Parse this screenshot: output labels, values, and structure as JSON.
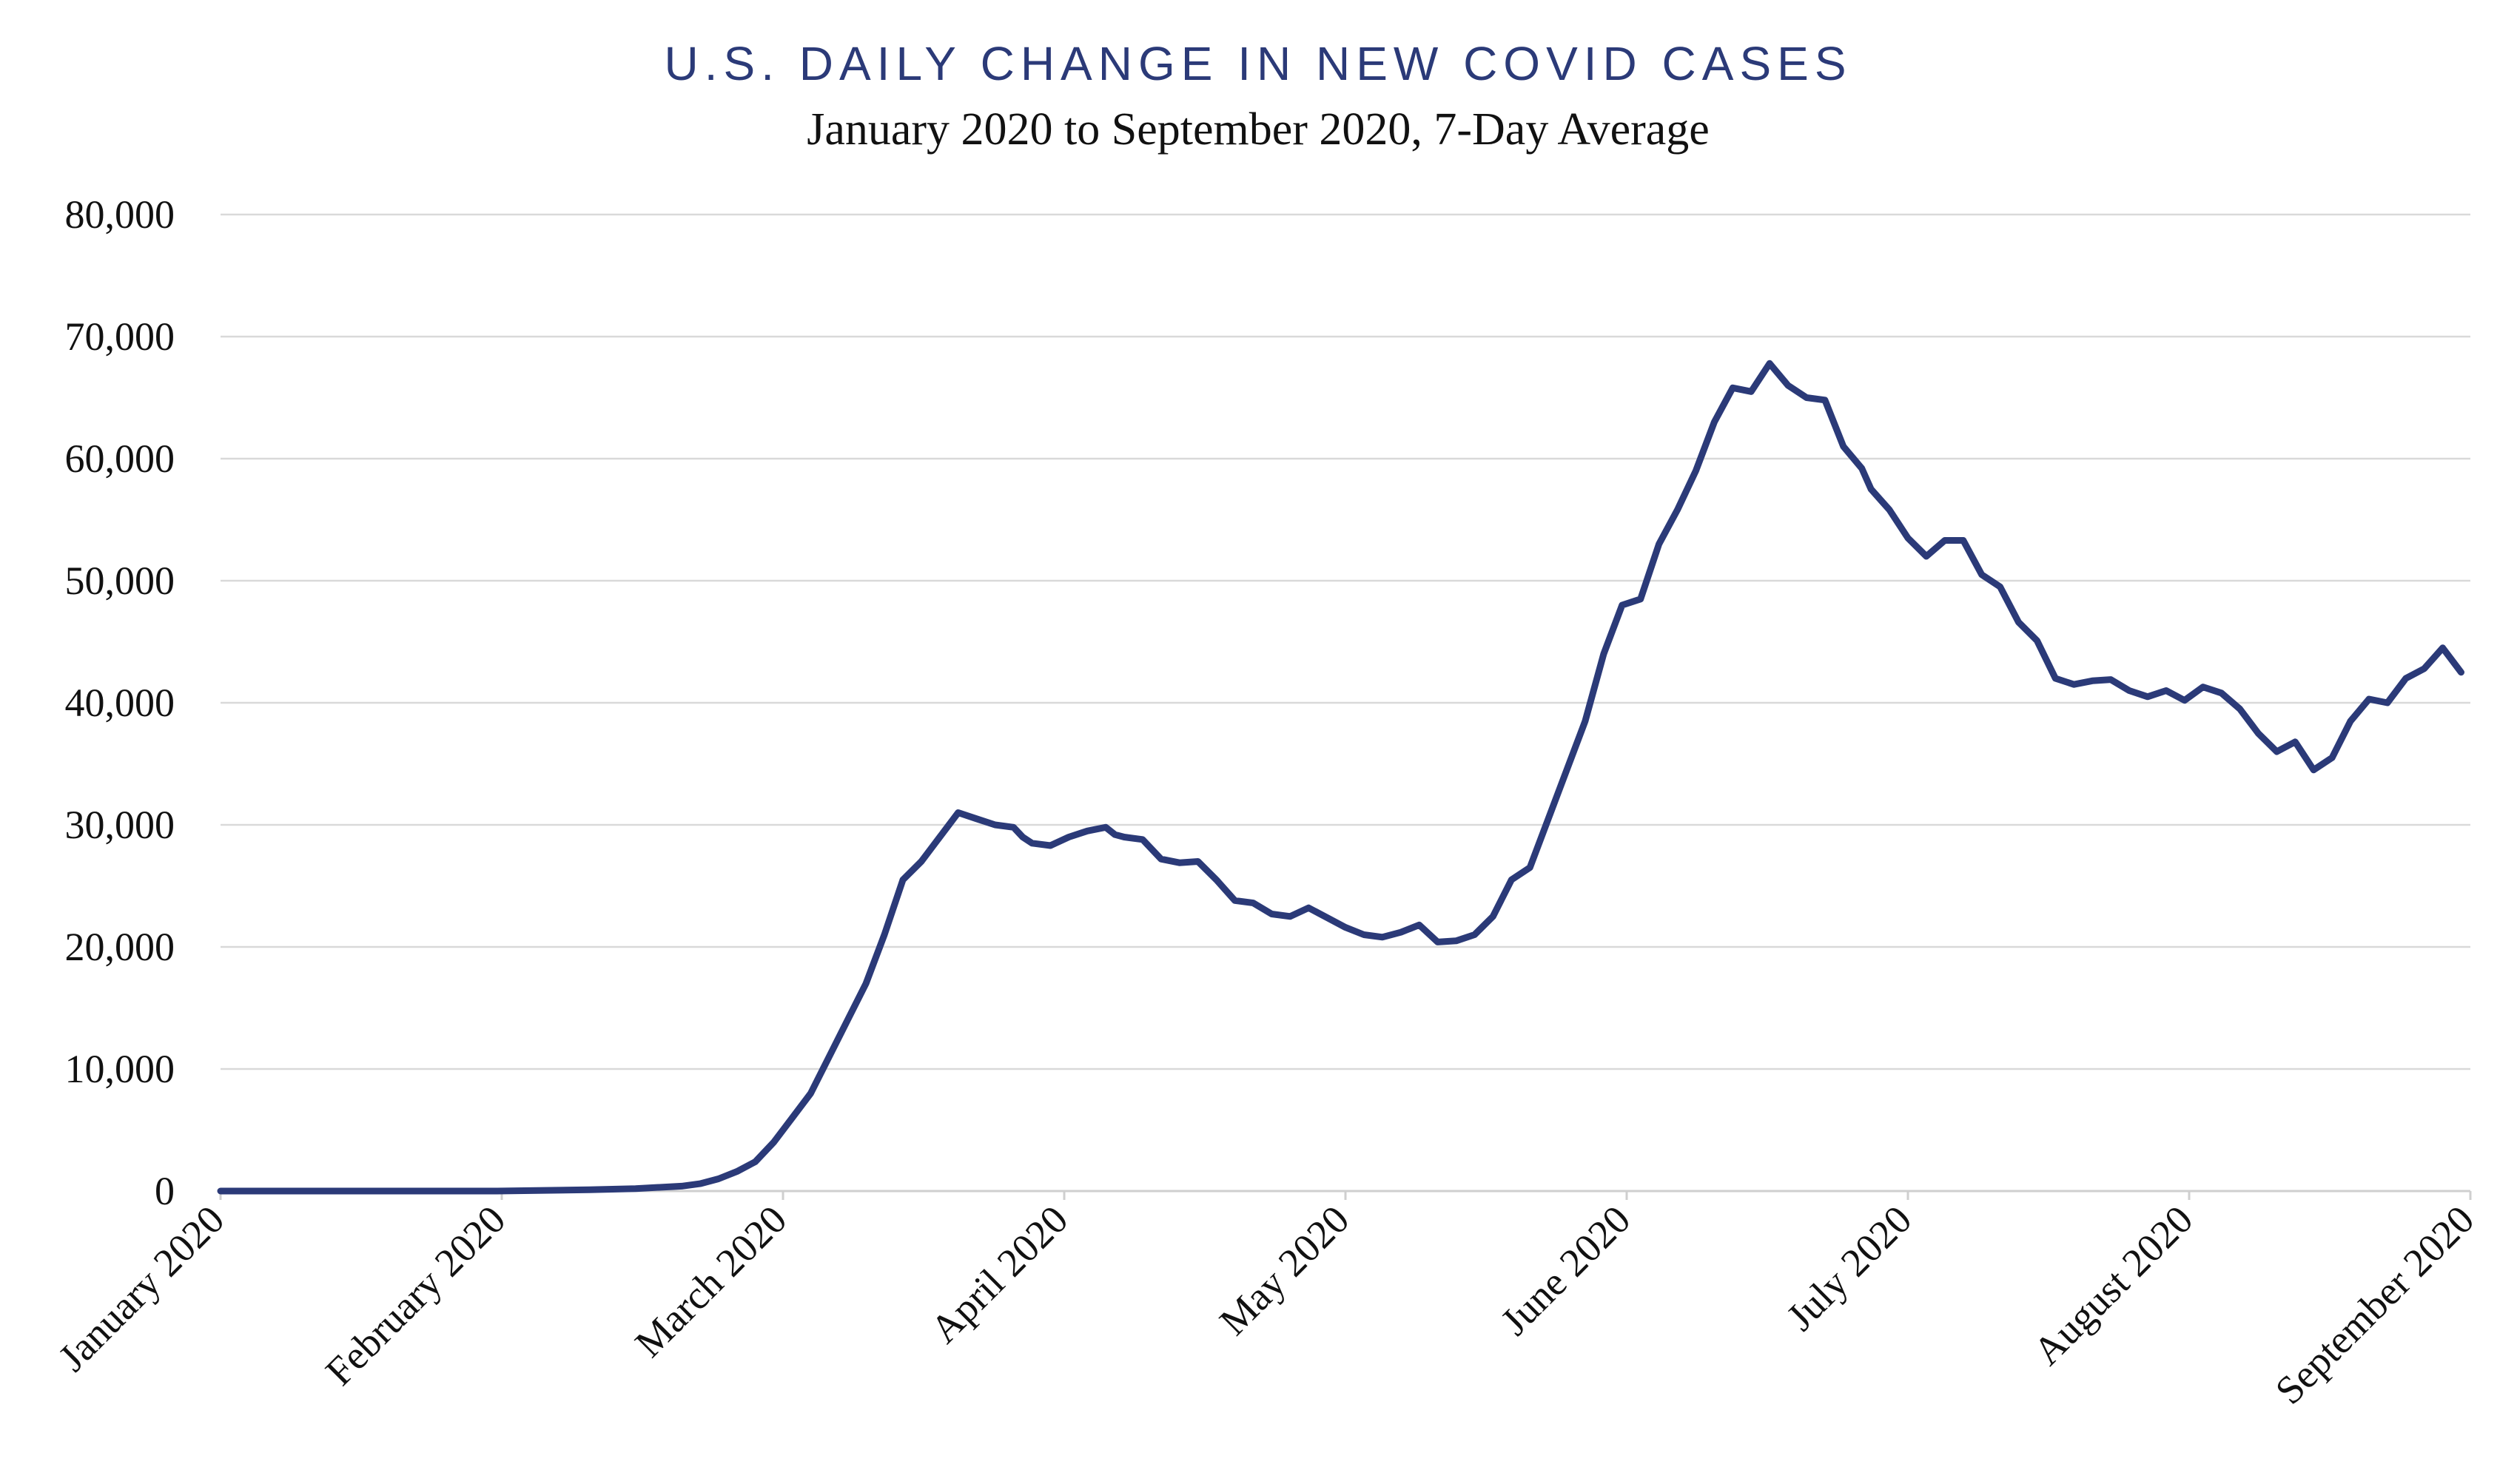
{
  "chart_data": {
    "type": "line",
    "title": "U.S. DAILY CHANGE IN NEW COVID CASES",
    "subtitle": "January 2020 to September 2020, 7-Day Average",
    "xlabel": "",
    "ylabel": "",
    "ylim": [
      0,
      80000
    ],
    "yticks": [
      0,
      10000,
      20000,
      30000,
      40000,
      50000,
      60000,
      70000,
      80000
    ],
    "ytick_labels": [
      "0",
      "10,000",
      "20,000",
      "30,000",
      "40,000",
      "50,000",
      "60,000",
      "70,000",
      "80,000"
    ],
    "xlim": [
      "2020-01-01",
      "2020-09-01"
    ],
    "xtick_labels": [
      "January 2020",
      "February 2020",
      "March 2020",
      "April 2020",
      "May 2020",
      "June 2020",
      "July 2020",
      "August 2020",
      "September 2020"
    ],
    "grid": true,
    "color": "#2b3a78",
    "series": [
      {
        "x": [
          "2020-01-01",
          "2020-01-15",
          "2020-01-31",
          "2020-02-10",
          "2020-02-15",
          "2020-02-20",
          "2020-02-22",
          "2020-02-24",
          "2020-02-26",
          "2020-02-28",
          "2020-03-01",
          "2020-03-03",
          "2020-03-05",
          "2020-03-07",
          "2020-03-09",
          "2020-03-11",
          "2020-03-13",
          "2020-03-15",
          "2020-03-17",
          "2020-03-19",
          "2020-03-21",
          "2020-03-23",
          "2020-03-25",
          "2020-03-27",
          "2020-03-28",
          "2020-03-29",
          "2020-03-31",
          "2020-04-02",
          "2020-04-04",
          "2020-04-06",
          "2020-04-07",
          "2020-04-08",
          "2020-04-10",
          "2020-04-12",
          "2020-04-14",
          "2020-04-16",
          "2020-04-18",
          "2020-04-20",
          "2020-04-22",
          "2020-04-24",
          "2020-04-26",
          "2020-04-28",
          "2020-04-30",
          "2020-05-02",
          "2020-05-04",
          "2020-05-06",
          "2020-05-08",
          "2020-05-10",
          "2020-05-12",
          "2020-05-14",
          "2020-05-16",
          "2020-05-18",
          "2020-05-20",
          "2020-05-22",
          "2020-05-24",
          "2020-05-26",
          "2020-05-28",
          "2020-05-30",
          "2020-06-01",
          "2020-06-03",
          "2020-06-05",
          "2020-06-07",
          "2020-06-09",
          "2020-06-11",
          "2020-06-13",
          "2020-06-15",
          "2020-06-17",
          "2020-06-19",
          "2020-06-21",
          "2020-06-23",
          "2020-06-25",
          "2020-06-27",
          "2020-06-28",
          "2020-06-30",
          "2020-07-02",
          "2020-07-04",
          "2020-07-06",
          "2020-07-08",
          "2020-07-10",
          "2020-07-12",
          "2020-07-14",
          "2020-07-16",
          "2020-07-18",
          "2020-07-20",
          "2020-07-22",
          "2020-07-24",
          "2020-07-26",
          "2020-07-28",
          "2020-07-30",
          "2020-08-01",
          "2020-08-03",
          "2020-08-05",
          "2020-08-07",
          "2020-08-09",
          "2020-08-11",
          "2020-08-13",
          "2020-08-15",
          "2020-08-17",
          "2020-08-19",
          "2020-08-21",
          "2020-08-23",
          "2020-08-25",
          "2020-08-27",
          "2020-08-29",
          "2020-08-31"
        ],
        "values": [
          0,
          0,
          0,
          100,
          200,
          400,
          600,
          1000,
          1600,
          2400,
          4000,
          6000,
          8000,
          11000,
          14000,
          17000,
          21000,
          25500,
          27000,
          29000,
          31000,
          30500,
          30000,
          29800,
          29000,
          28500,
          28300,
          29000,
          29500,
          29800,
          29200,
          29000,
          28800,
          27200,
          26900,
          27000,
          25500,
          23800,
          23600,
          22700,
          22500,
          23200,
          22400,
          21600,
          21000,
          20800,
          21200,
          21800,
          20400,
          20500,
          21000,
          22500,
          25500,
          26500,
          30500,
          34500,
          38500,
          44000,
          48000,
          48500,
          53000,
          55800,
          59000,
          63000,
          65800,
          65500,
          67800,
          66000,
          65000,
          64800,
          61000,
          59200,
          57500,
          55800,
          53500,
          52000,
          53300,
          53300,
          50500,
          49500,
          46600,
          45100,
          42000,
          41500,
          41800,
          41900,
          41000,
          40500,
          41000,
          40200,
          41300,
          40800,
          39500,
          37500,
          36000,
          36800,
          34500,
          35500,
          38500,
          40300,
          40000,
          42000,
          42800,
          44500,
          42500
        ]
      }
    ]
  }
}
